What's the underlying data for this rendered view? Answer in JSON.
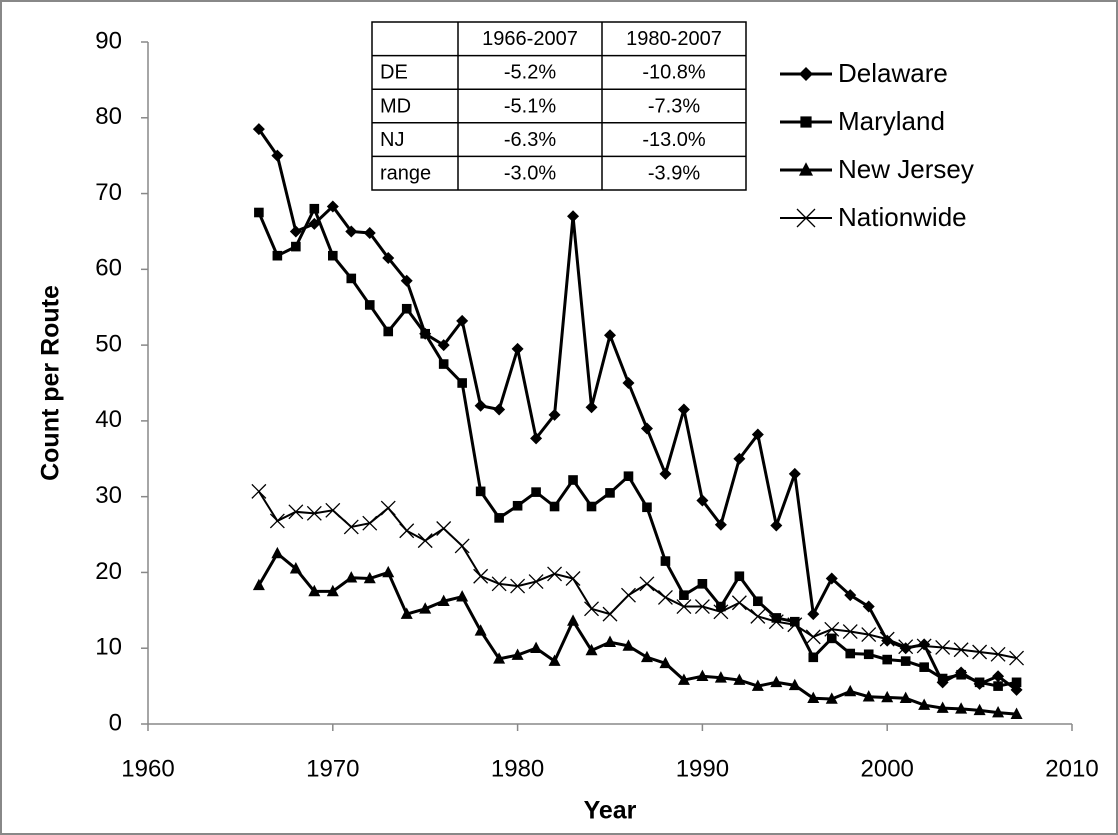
{
  "chart_data": {
    "type": "line",
    "xlabel": "Year",
    "ylabel": "Count per Route",
    "x": [
      1966,
      1967,
      1968,
      1969,
      1970,
      1971,
      1972,
      1973,
      1974,
      1975,
      1976,
      1977,
      1978,
      1979,
      1980,
      1981,
      1982,
      1983,
      1984,
      1985,
      1986,
      1987,
      1988,
      1989,
      1990,
      1991,
      1992,
      1993,
      1994,
      1995,
      1996,
      1997,
      1998,
      1999,
      2000,
      2001,
      2002,
      2003,
      2004,
      2005,
      2006,
      2007
    ],
    "series": [
      {
        "name": "Delaware",
        "color": "#000000",
        "marker": "diamond",
        "values": [
          78.5,
          75,
          65,
          66,
          68.3,
          65,
          64.8,
          61.5,
          58.5,
          51.5,
          50,
          53.2,
          42,
          41.5,
          49.5,
          37.7,
          40.8,
          67,
          41.8,
          51.3,
          45,
          39,
          33,
          41.5,
          29.5,
          26.3,
          35,
          38.2,
          26.2,
          33,
          14.5,
          19.2,
          17,
          15.5,
          11,
          10,
          10.5,
          5.5,
          6.8,
          5.3,
          6.3,
          4.5
        ]
      },
      {
        "name": "Maryland",
        "color": "#000000",
        "marker": "square",
        "values": [
          67.5,
          61.8,
          63,
          68,
          61.8,
          58.8,
          55.3,
          51.8,
          54.8,
          51.5,
          47.5,
          45,
          30.7,
          27.2,
          28.8,
          30.6,
          28.7,
          32.2,
          28.7,
          30.5,
          32.7,
          28.6,
          21.5,
          17,
          18.5,
          15.5,
          19.5,
          16.2,
          14,
          13.5,
          8.8,
          11.3,
          9.3,
          9.2,
          8.5,
          8.3,
          7.5,
          6,
          6.5,
          5.5,
          5,
          5.5
        ]
      },
      {
        "name": "New Jersey",
        "color": "#000000",
        "marker": "triangle",
        "values": [
          18.3,
          22.5,
          20.5,
          17.5,
          17.5,
          19.3,
          19.2,
          20,
          14.5,
          15.2,
          16.2,
          16.8,
          12.3,
          8.6,
          9.1,
          10,
          8.3,
          13.6,
          9.7,
          10.8,
          10.3,
          8.8,
          8,
          5.8,
          6.3,
          6.1,
          5.8,
          5,
          5.5,
          5.1,
          3.4,
          3.3,
          4.3,
          3.6,
          3.5,
          3.4,
          2.5,
          2.1,
          2,
          1.8,
          1.5,
          1.3
        ]
      },
      {
        "name": "Nationwide",
        "color": "#000000",
        "marker": "x",
        "values": [
          30.7,
          26.8,
          28,
          27.8,
          28.2,
          26,
          26.5,
          28.5,
          25.5,
          24.2,
          25.8,
          23.5,
          19.5,
          18.5,
          18.2,
          18.8,
          19.8,
          19.2,
          15.2,
          14.5,
          17,
          18.5,
          16.7,
          15.5,
          15.5,
          14.8,
          16,
          14.2,
          13.5,
          13.1,
          11.5,
          12.5,
          12.2,
          11.8,
          11.2,
          10.2,
          10.3,
          10.1,
          9.8,
          9.5,
          9.2,
          8.7
        ]
      }
    ],
    "xlim": [
      1960,
      2010
    ],
    "xticks": [
      1960,
      1970,
      1980,
      1990,
      2000,
      2010
    ],
    "ylim": [
      0,
      90
    ],
    "yticks": [
      0,
      10,
      20,
      30,
      40,
      50,
      60,
      70,
      80,
      90
    ],
    "grid": false,
    "legend": "right",
    "table": {
      "header": [
        "1966-2007",
        "1980-2007"
      ],
      "rows": [
        [
          "DE",
          "-5.2%",
          "-10.8%"
        ],
        [
          "MD",
          "-5.1%",
          "-7.3%"
        ],
        [
          "NJ",
          "-6.3%",
          "-13.0%"
        ],
        [
          "range",
          "-3.0%",
          "-3.9%"
        ]
      ]
    }
  }
}
